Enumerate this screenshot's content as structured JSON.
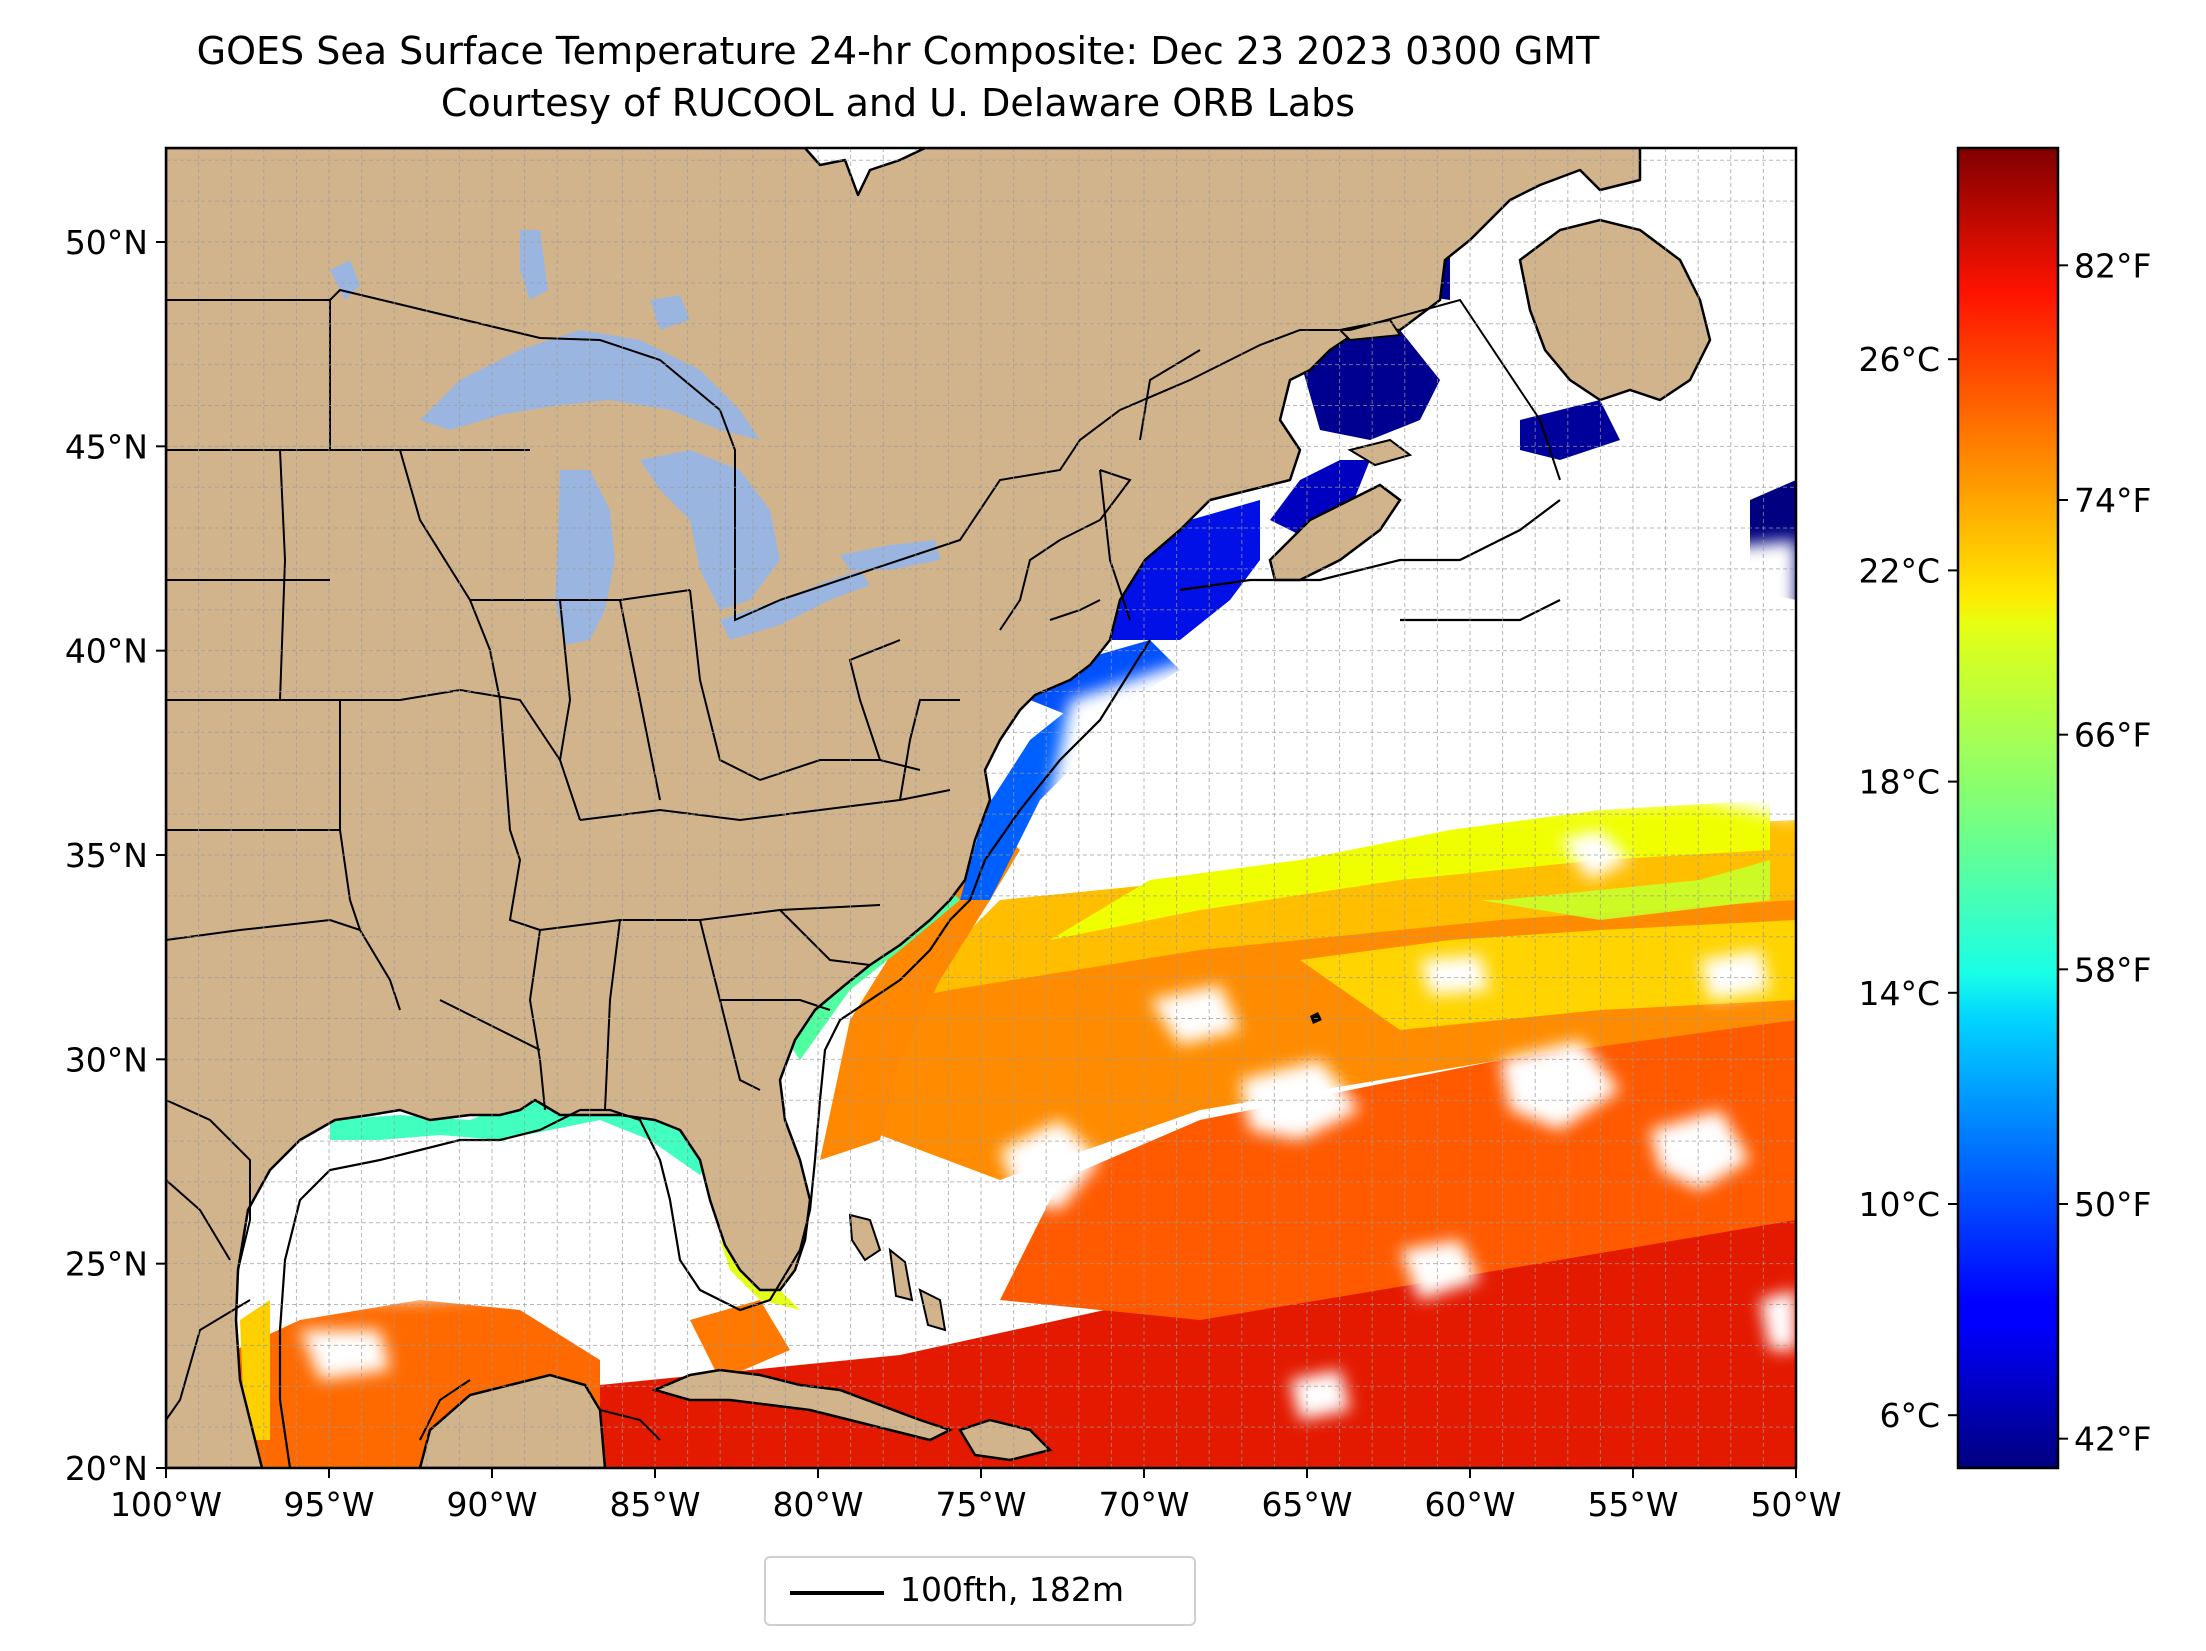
{
  "title": {
    "line1": "GOES Sea Surface Temperature 24-hr Composite: Dec 23 2023 0300 GMT",
    "line2": "Courtesy of RUCOOL and U. Delaware ORB Labs"
  },
  "map": {
    "lon_range": [
      -100,
      -50
    ],
    "lat_range": [
      20,
      52.3
    ],
    "lon_ticks": [
      "100°W",
      "95°W",
      "90°W",
      "85°W",
      "80°W",
      "75°W",
      "70°W",
      "65°W",
      "60°W",
      "55°W",
      "50°W"
    ],
    "lat_ticks": [
      "20°N",
      "25°N",
      "30°N",
      "35°N",
      "40°N",
      "45°N",
      "50°N"
    ],
    "lat_tick_values": [
      20,
      25,
      30,
      35,
      40,
      45,
      50
    ],
    "lon_tick_values": [
      -100,
      -95,
      -90,
      -85,
      -80,
      -75,
      -70,
      -65,
      -60,
      -55,
      -50
    ],
    "grid": true,
    "land_color": "#d2b48c",
    "lake_color": "#9ab6e0",
    "ocean_color": "#ffffff"
  },
  "colorbar": {
    "colormap": "jet",
    "range_c": [
      5.0,
      30.0
    ],
    "celsius_ticks": [
      "6°C",
      "10°C",
      "14°C",
      "18°C",
      "22°C",
      "26°C"
    ],
    "celsius_values": [
      6,
      10,
      14,
      18,
      22,
      26
    ],
    "fahrenheit_ticks": [
      "42°F",
      "50°F",
      "58°F",
      "66°F",
      "74°F",
      "82°F"
    ],
    "fahrenheit_values": [
      42,
      50,
      58,
      66,
      74,
      82
    ]
  },
  "legend": {
    "label": "100fth, 182m"
  }
}
